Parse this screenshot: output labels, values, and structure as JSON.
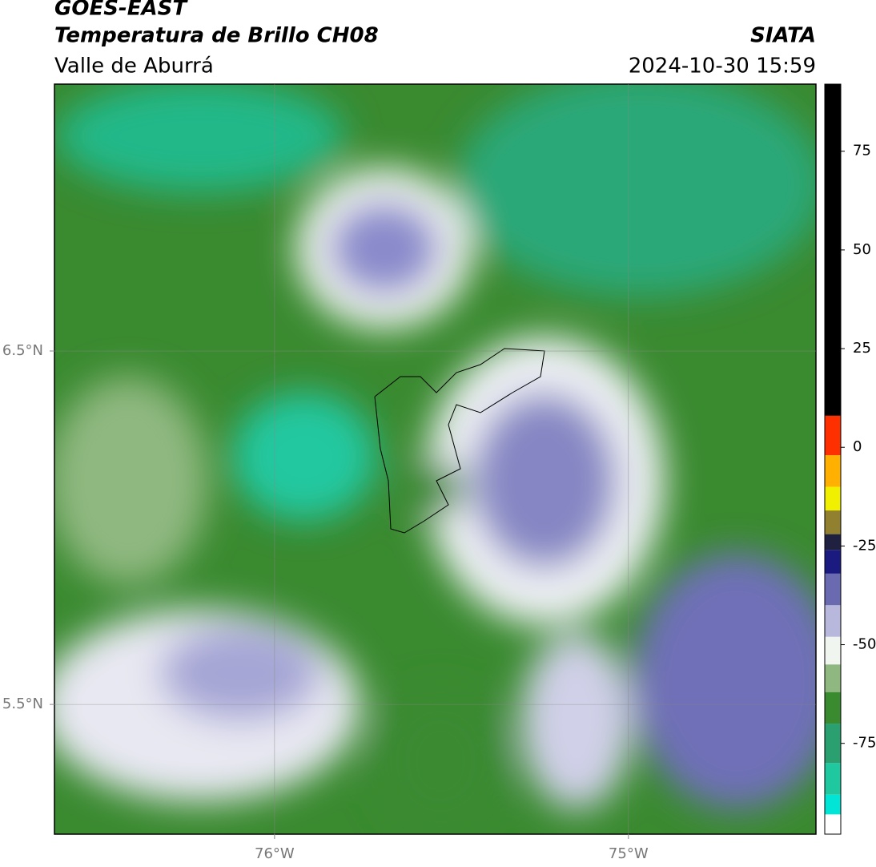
{
  "header": {
    "line1": "GOES-EAST",
    "title": "Temperatura de Brillo CH08",
    "region": "Valle de Aburrá",
    "brand": "SIATA",
    "datetime": "2024-10-30 15:59"
  },
  "map": {
    "xlim": [
      -76.622,
      -74.47
    ],
    "ylim": [
      5.133,
      7.255
    ],
    "xticks": [
      {
        "value": -76,
        "label": "76°W"
      },
      {
        "value": -75,
        "label": "75°W"
      }
    ],
    "yticks": [
      {
        "value": 6.5,
        "label": "6.5°N"
      },
      {
        "value": 5.5,
        "label": "5.5°N"
      }
    ],
    "grid": true
  },
  "colorbar": {
    "lim": [
      -98,
      92
    ],
    "ticks": [
      75,
      50,
      25,
      0,
      -25,
      -50,
      -75
    ],
    "segments": [
      {
        "from": -98,
        "to": -93,
        "color": "#ffffff"
      },
      {
        "from": -93,
        "to": -88,
        "color": "#00e5d5"
      },
      {
        "from": -88,
        "to": -80,
        "color": "#20c8a0"
      },
      {
        "from": -80,
        "to": -70,
        "color": "#2aa070"
      },
      {
        "from": -70,
        "to": -62,
        "color": "#3a8a30"
      },
      {
        "from": -62,
        "to": -55,
        "color": "#8fb880"
      },
      {
        "from": -55,
        "to": -48,
        "color": "#f0f5ef"
      },
      {
        "from": -48,
        "to": -40,
        "color": "#b8b8dc"
      },
      {
        "from": -40,
        "to": -32,
        "color": "#6a6ab0"
      },
      {
        "from": -32,
        "to": -26,
        "color": "#1a1a80"
      },
      {
        "from": -26,
        "to": -22,
        "color": "#202040"
      },
      {
        "from": -22,
        "to": -16,
        "color": "#908030"
      },
      {
        "from": -16,
        "to": -10,
        "color": "#f0f000"
      },
      {
        "from": -10,
        "to": -2,
        "color": "#ffb000"
      },
      {
        "from": -2,
        "to": 8,
        "color": "#ff3000"
      },
      {
        "from": 8,
        "to": 92,
        "color": "#000000"
      }
    ]
  }
}
